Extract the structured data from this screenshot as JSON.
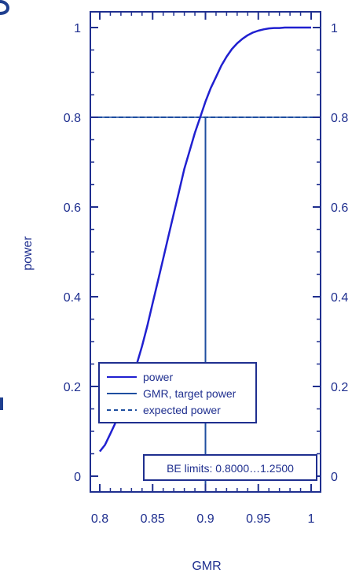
{
  "chart_data": {
    "type": "line",
    "xlabel": "GMR",
    "ylabel": "power",
    "xlim": [
      0.8,
      1.0
    ],
    "ylim": [
      0,
      1.0
    ],
    "x_ticks": [
      0.8,
      0.85,
      0.9,
      0.95,
      1.0
    ],
    "x_tick_labels": [
      "0.8",
      "0.85",
      "0.9",
      "0.95",
      "1"
    ],
    "y_ticks": [
      0,
      0.2,
      0.4,
      0.6,
      0.8,
      1.0
    ],
    "y_tick_labels": [
      "0",
      "0.2",
      "0.4",
      "0.6",
      "0.8",
      "1"
    ],
    "grid": false,
    "series": [
      {
        "name": "power",
        "style": "solid",
        "color": "#2020d0",
        "x": [
          0.8,
          0.805,
          0.81,
          0.815,
          0.82,
          0.825,
          0.83,
          0.835,
          0.84,
          0.845,
          0.85,
          0.855,
          0.86,
          0.865,
          0.87,
          0.875,
          0.88,
          0.885,
          0.89,
          0.895,
          0.9,
          0.905,
          0.91,
          0.915,
          0.92,
          0.925,
          0.93,
          0.935,
          0.94,
          0.945,
          0.95,
          0.955,
          0.96,
          0.965,
          0.97,
          0.975,
          0.98,
          0.985,
          0.99,
          1.0
        ],
        "values": [
          0.055,
          0.07,
          0.095,
          0.12,
          0.15,
          0.18,
          0.21,
          0.25,
          0.29,
          0.335,
          0.385,
          0.435,
          0.485,
          0.535,
          0.585,
          0.635,
          0.685,
          0.725,
          0.765,
          0.8,
          0.835,
          0.865,
          0.89,
          0.915,
          0.935,
          0.952,
          0.965,
          0.975,
          0.983,
          0.989,
          0.993,
          0.996,
          0.998,
          0.999,
          0.999,
          1.0,
          1.0,
          1.0,
          1.0,
          1.0
        ]
      },
      {
        "name": "GMR, target power",
        "style": "solid",
        "color": "#1f4fa0",
        "target_gmr": 0.9,
        "target_power": 0.8
      },
      {
        "name": "expected power",
        "style": "dashed",
        "color": "#1f4fa0"
      }
    ],
    "legend": {
      "placement": "lower-left",
      "entries": [
        "power",
        "GMR, target power",
        "expected power"
      ]
    },
    "annotation": "BE limits: 0.8000…1.2500"
  }
}
